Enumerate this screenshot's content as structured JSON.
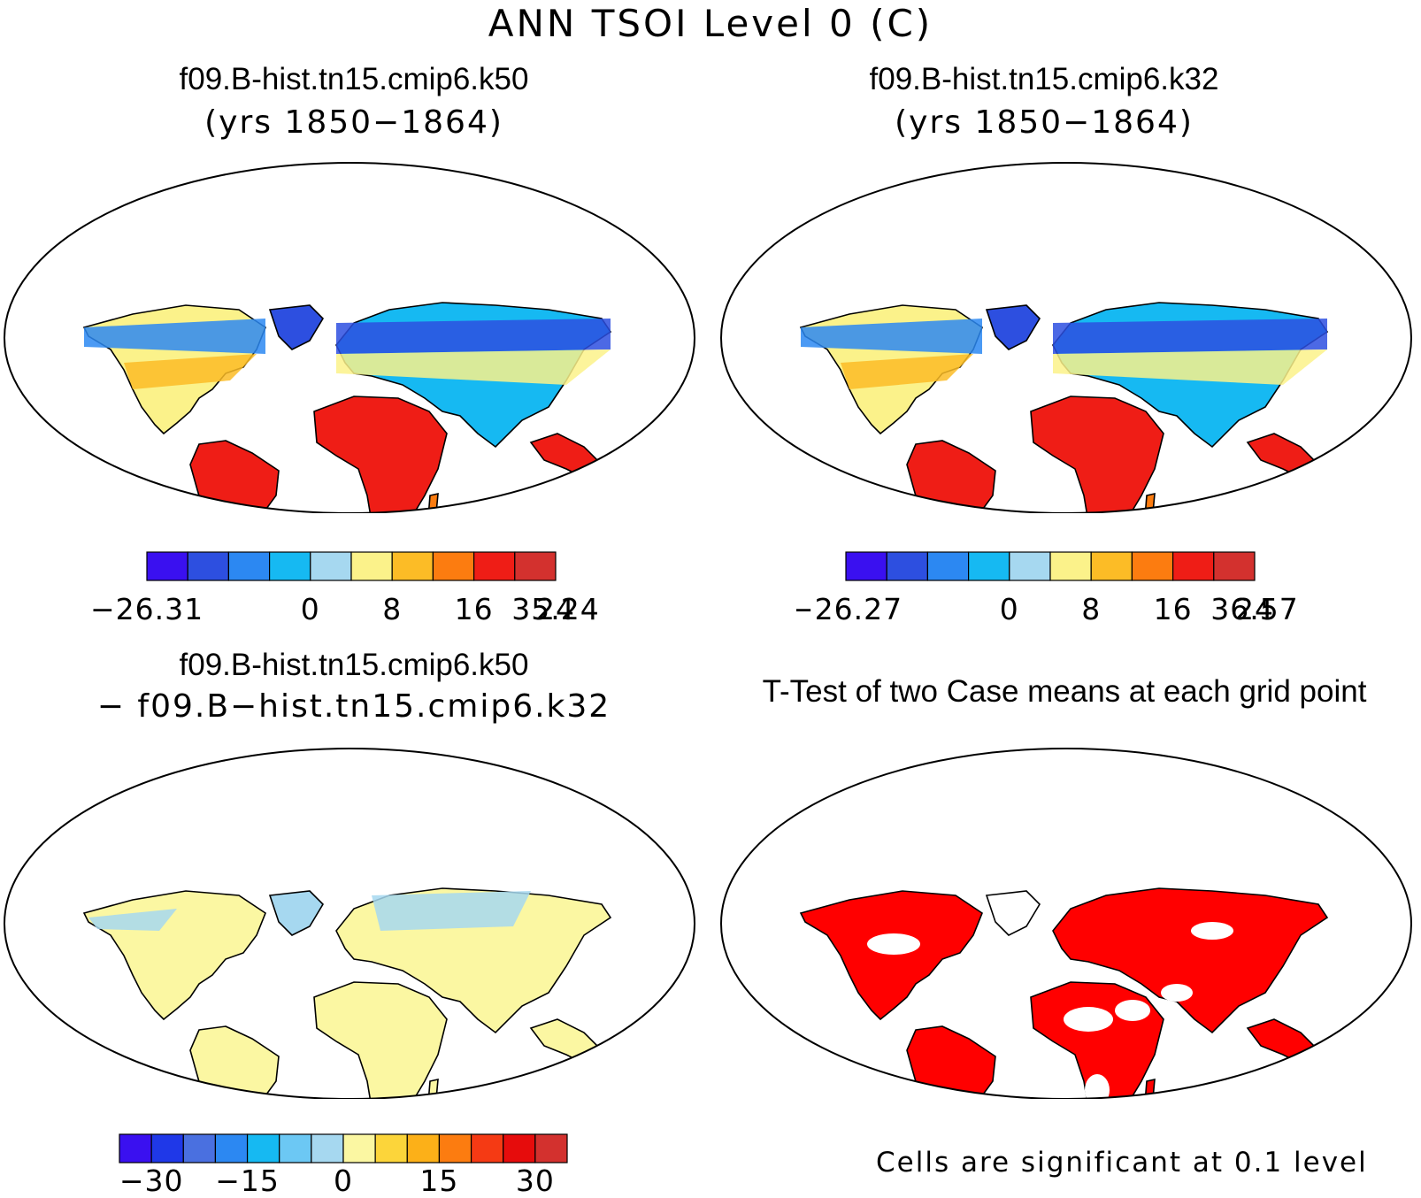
{
  "figure": {
    "title": "ANN TSOI Level 0 (C)"
  },
  "panels": [
    {
      "id": "case1",
      "title": "f09.B-hist.tn15.cmip6.k50",
      "subtitle": "(yrs 1850−1864)",
      "legend": {
        "tick_labels": [
          "−26.31",
          "0",
          "8",
          "16",
          "24",
          "35.24"
        ],
        "colors": [
          "#3a10f0",
          "#2d4fe0",
          "#2c88f2",
          "#16b9f2",
          "#a6d8f0",
          "#fbf28a",
          "#fcbc26",
          "#fc7c10",
          "#ef1d16",
          "#d3312e"
        ]
      }
    },
    {
      "id": "case2",
      "title": "f09.B-hist.tn15.cmip6.k32",
      "subtitle": "(yrs 1850−1864)",
      "legend": {
        "tick_labels": [
          "−26.27",
          "0",
          "8",
          "16",
          "24",
          "36.57"
        ],
        "colors": [
          "#3a10f0",
          "#2d4fe0",
          "#2c88f2",
          "#16b9f2",
          "#a6d8f0",
          "#fbf28a",
          "#fcbc26",
          "#fc7c10",
          "#ef1d16",
          "#d3312e"
        ]
      }
    },
    {
      "id": "diff",
      "title": "f09.B-hist.tn15.cmip6.k50",
      "subtitle": "− f09.B−hist.tn15.cmip6.k32",
      "legend": {
        "tick_labels": [
          "−30",
          "−15",
          "0",
          "15",
          "30"
        ],
        "colors": [
          "#3a10f0",
          "#1f38e8",
          "#4a70e0",
          "#2c88f2",
          "#16b9f2",
          "#6cc8f4",
          "#a6d8f0",
          "#fbf7a2",
          "#fcd53a",
          "#fcb018",
          "#fc7c10",
          "#f53a14",
          "#e60c0c",
          "#d3312e"
        ]
      }
    },
    {
      "id": "ttest",
      "title": "T-Test of two Case means at each grid point",
      "note": "Cells are significant at 0.1 level",
      "significant_color": "#ff0000"
    }
  ]
}
